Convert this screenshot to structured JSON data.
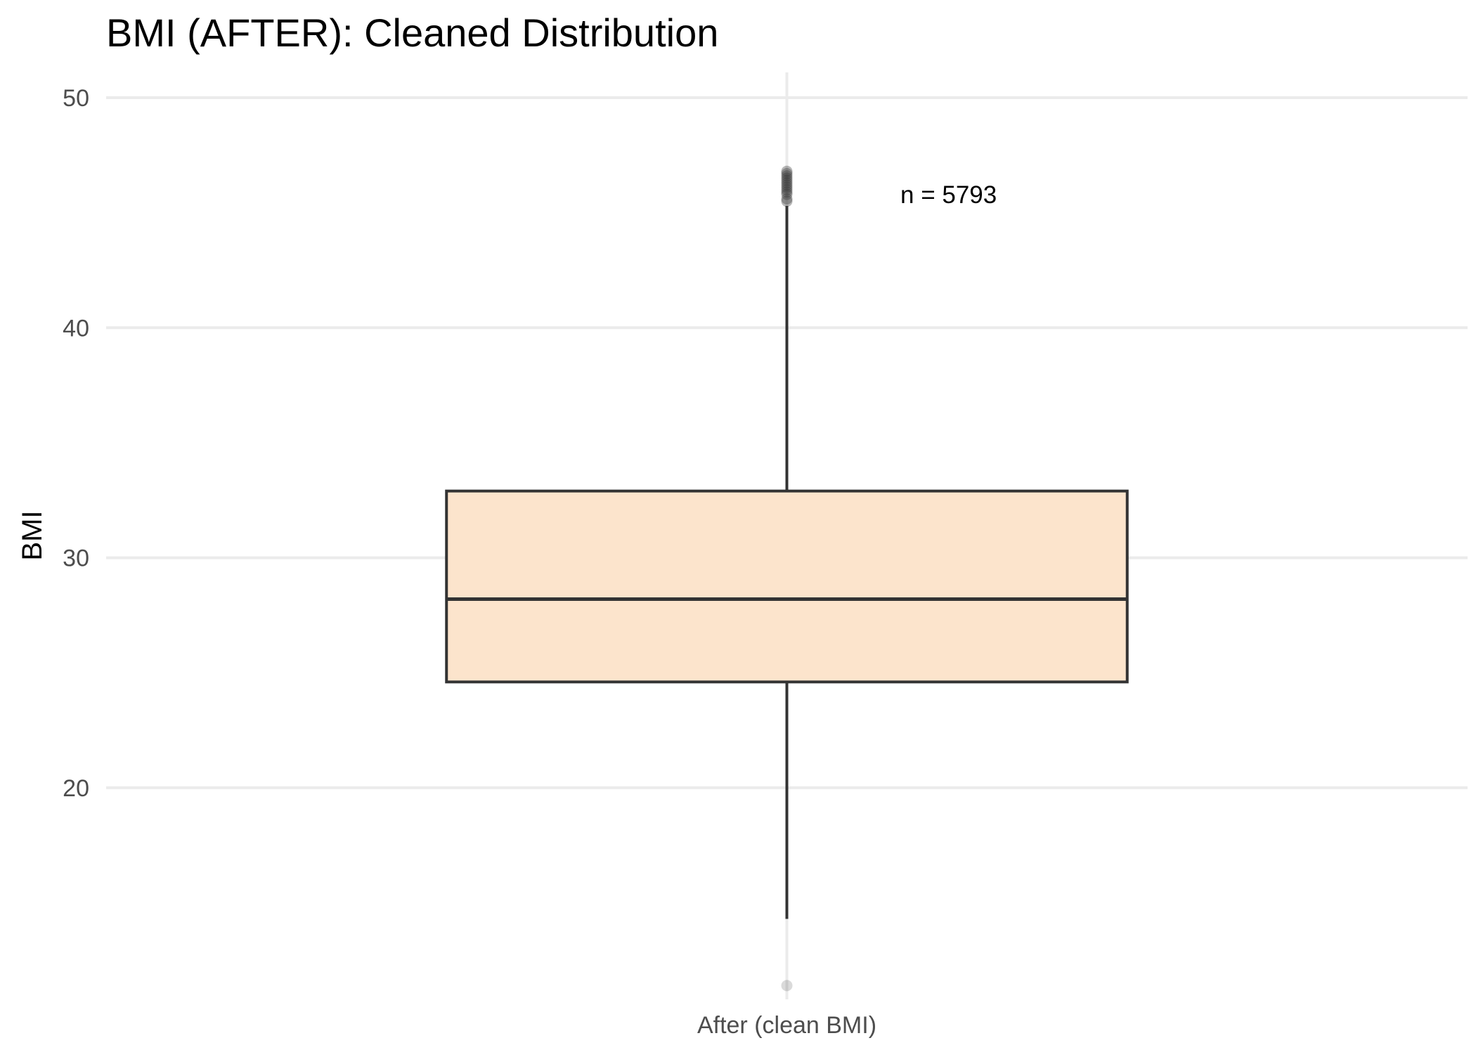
{
  "chart_data": {
    "type": "box",
    "title": "BMI (AFTER): Cleaned Distribution",
    "xlabel": "",
    "ylabel": "BMI",
    "categories": [
      "After (clean BMI)"
    ],
    "y_ticks": [
      20,
      30,
      40,
      50
    ],
    "ylim": [
      10.8,
      51.1
    ],
    "grid": true,
    "legend": "none",
    "box": {
      "q1": 24.6,
      "median": 28.2,
      "q3": 32.9,
      "whisker_low": 14.3,
      "whisker_high": 45.3,
      "outliers_high": [
        45.5,
        45.6,
        45.8,
        45.9,
        46.0,
        46.1,
        46.2,
        46.3,
        46.4,
        46.5,
        46.6,
        46.7,
        46.8
      ],
      "outliers_low": [
        11.4
      ]
    },
    "annotation": "n = 5793",
    "colors": {
      "box_fill": "#fce4cc",
      "box_line": "#333333",
      "grid": "#ebebeb",
      "outlier": "#333333"
    }
  }
}
